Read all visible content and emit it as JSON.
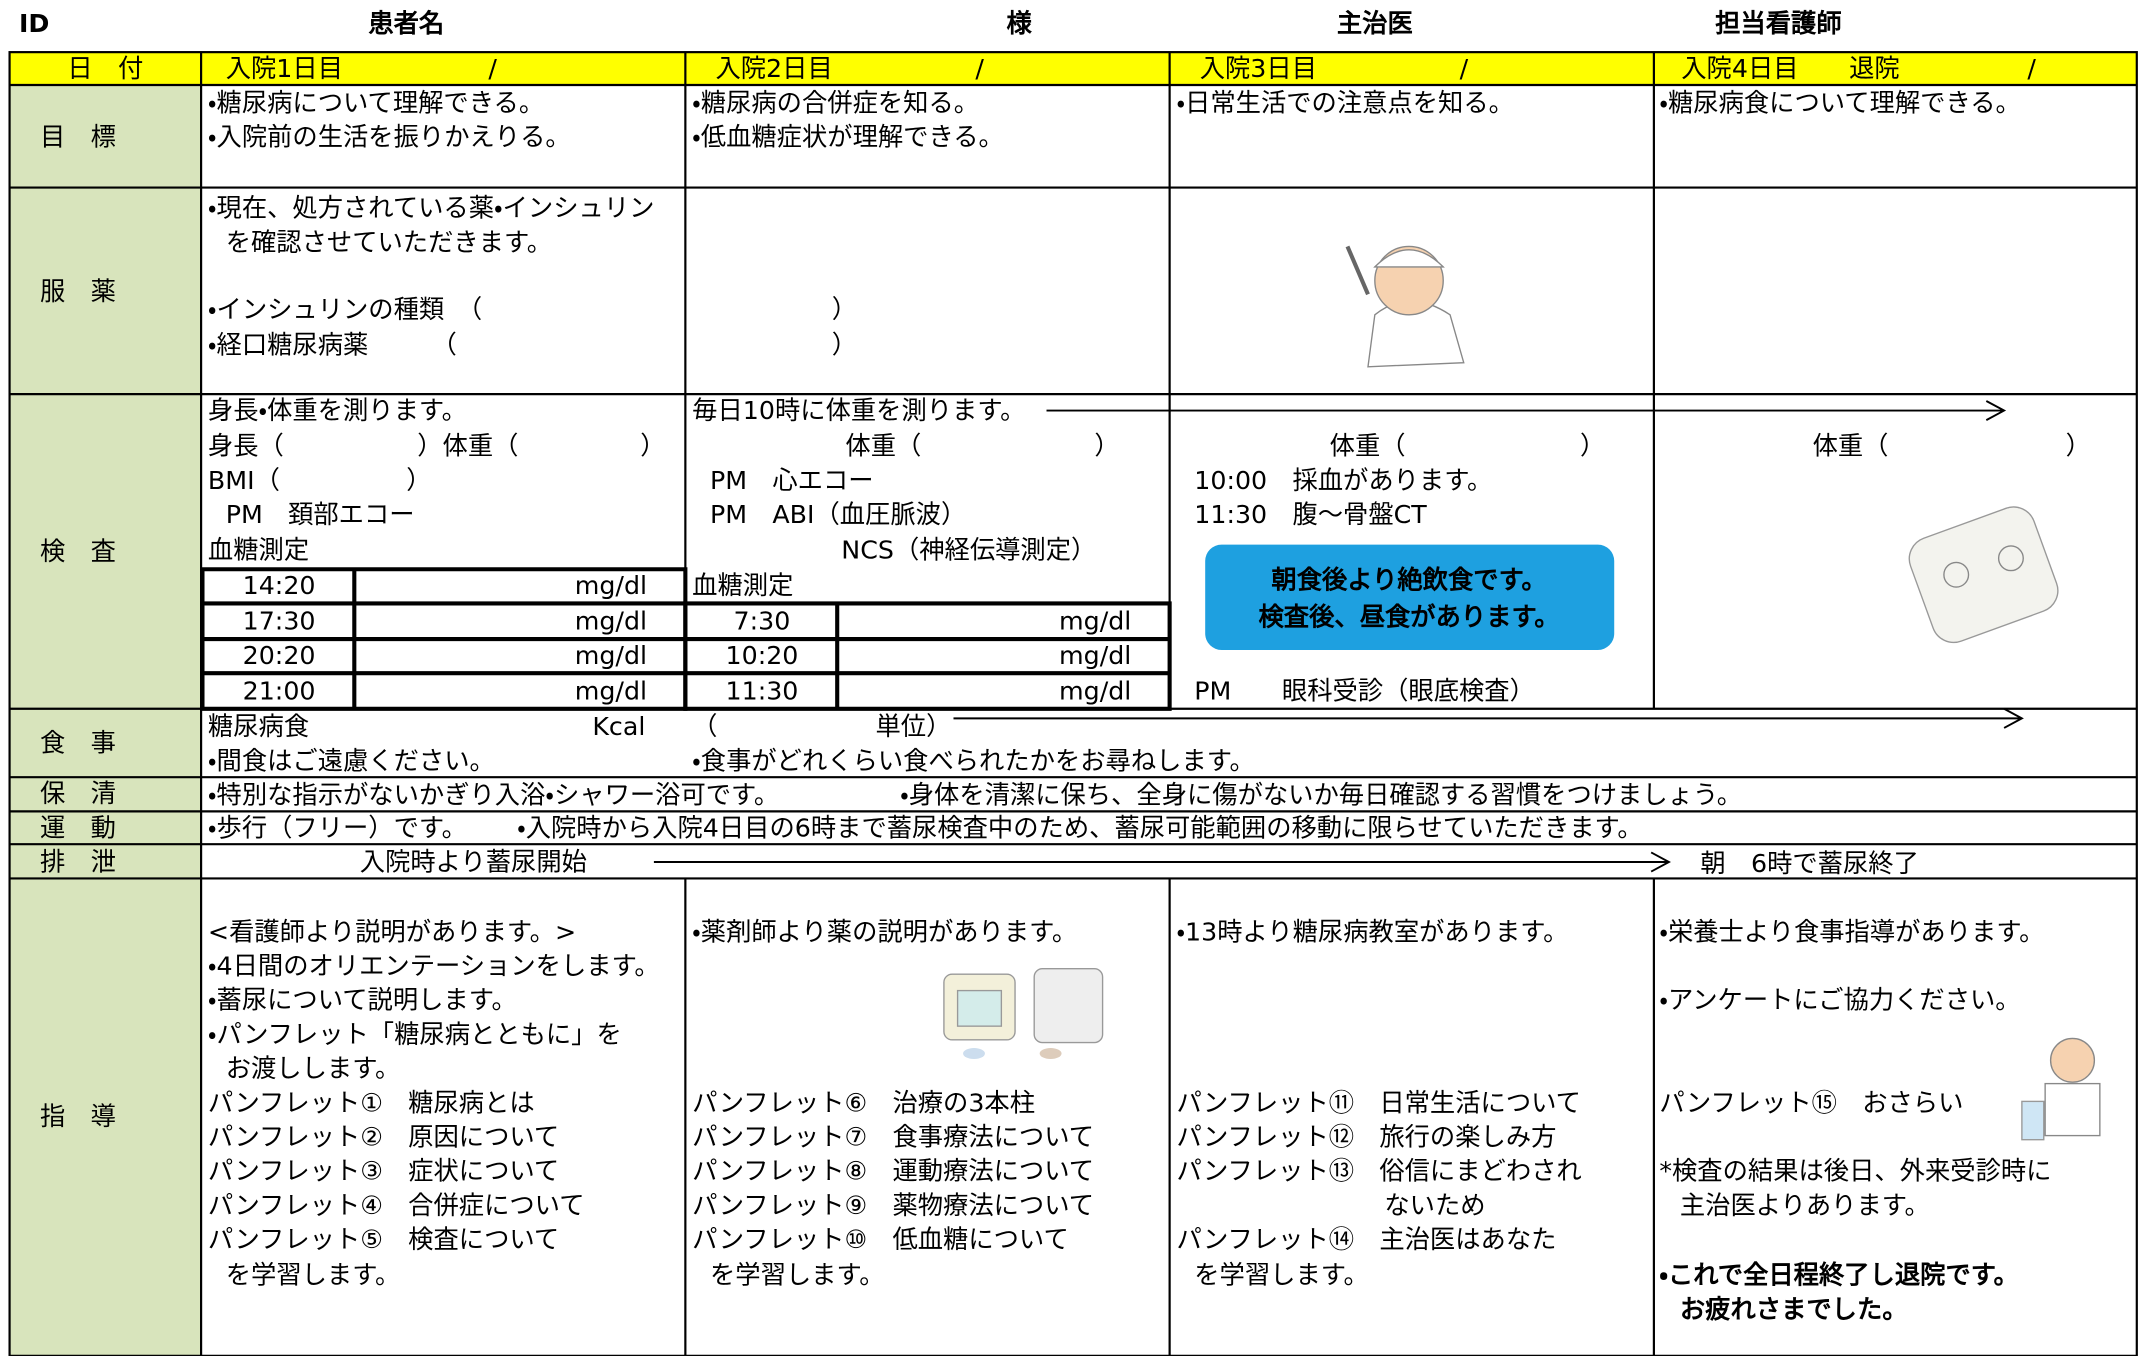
{
  "header": {
    "id": "ID",
    "patient": "患者名",
    "sama": "様",
    "doctor": "主治医",
    "nurse": "担当看護師"
  },
  "date_row": {
    "label": "日　付",
    "days": [
      "入院1日目",
      "入院2日目",
      "入院3日目",
      "入院4日目　　退院"
    ],
    "slashes": [
      "/",
      "/",
      "/",
      "/"
    ]
  },
  "goal": {
    "label": "目　標",
    "day1": [
      "・糖尿病について理解できる。",
      "・入院前の生活を振りかえりる。"
    ],
    "day2": [
      "・糖尿病の合併症を知る。",
      "・低血糖症状が理解できる。"
    ],
    "day3": [
      "・日常生活での注意点を知る。"
    ],
    "day4": [
      "・糖尿病食について理解できる。"
    ]
  },
  "medication": {
    "label": "服　薬",
    "day1": [
      "・現在、処方されている薬・インシュリン",
      "を確認させていただきます。",
      "・インシュリンの種類　（",
      "）",
      "・経口糖尿病薬　　　（",
      "）"
    ]
  },
  "exam": {
    "label": "検　査",
    "day1": [
      "身長・体重を測ります。",
      "身長（",
      "）体重（",
      "）",
      "BMI（",
      "）",
      "PM　頚部エコー",
      "血糖測定"
    ],
    "day1_glucose": [
      [
        "14:20",
        "mg/dl"
      ],
      [
        "17:30",
        "mg/dl"
      ],
      [
        "20:20",
        "mg/dl"
      ],
      [
        "21:00",
        "mg/dl"
      ]
    ],
    "day2": [
      "毎日10時に体重を測ります。",
      "体重（",
      "）",
      "PM　心エコー",
      "PM　ABI（血圧脈波）",
      "NCS（神経伝導測定）",
      "血糖測定"
    ],
    "day2_glucose": [
      [
        "7:30",
        "mg/dl"
      ],
      [
        "10:20",
        "mg/dl"
      ],
      [
        "11:30",
        "mg/dl"
      ]
    ],
    "day3": [
      "体重（",
      "）",
      "10:00　採血があります。",
      "11:30　腹～骨盤CT",
      "PM　　眼科受診（眼底検査）"
    ],
    "day3_notice": [
      "朝食後より絶飲食です。",
      "検査後、昼食があります。"
    ],
    "day4": [
      "体重（",
      "）"
    ]
  },
  "meal": {
    "label": "食　事",
    "lines": [
      "糖尿病食",
      "Kcal",
      "（",
      "単位）",
      "・間食はご遠慮ください。",
      "・食事がどれくらい食べられたかをお尋ねします。"
    ]
  },
  "hygiene": {
    "label": "保　清",
    "lines": [
      "・特別な指示がないかぎり入浴・シャワー浴可です。",
      "・身体を清潔に保ち、全身に傷がないか毎日確認する習慣をつけましょう。"
    ]
  },
  "exercise": {
    "label": "運　動",
    "lines": [
      "・歩行（フリー）です。",
      "・入院時から入院4日目の6時まで蓄尿検査中のため、蓄尿可能範囲の移動に限らせていただきます。"
    ]
  },
  "excretion": {
    "label": "排　泄",
    "lines": [
      "入院時より蓄尿開始",
      "朝　6時で蓄尿終了"
    ]
  },
  "guidance": {
    "label": "指　導",
    "day1": [
      "<看護師より説明があります。>",
      "・4日間のオリエンテーションをします。",
      "・蓄尿について説明します。",
      "・パンフレット「糖尿病とともに」を",
      "お渡しします。",
      "パンフレット①　糖尿病とは",
      "パンフレット②　原因について",
      "パンフレット③　症状について",
      "パンフレット④　合併症について",
      "パンフレット⑤　検査について",
      "を学習します。"
    ],
    "day2": [
      "・薬剤師より薬の説明があります。",
      "パンフレット⑥　治療の3本柱",
      "パンフレット⑦　食事療法について",
      "パンフレット⑧　運動療法について",
      "パンフレット⑨　薬物療法について",
      "パンフレット⑩　低血糖について",
      "を学習します。"
    ],
    "day3": [
      "・13時より糖尿病教室があります。",
      "パンフレット⑪　日常生活について",
      "パンフレット⑫　旅行の楽しみ方",
      "パンフレット⑬　俗信にまどわされ",
      "ないため",
      "パンフレット⑭　主治医はあなた",
      "を学習します。"
    ],
    "day4": [
      "・栄養士より食事指導があります。",
      "・アンケートにご協力ください。",
      "パンフレット⑮　おさらい",
      "*検査の結果は後日、外来受診時に",
      "主治医よりあります。",
      "・これで全日程終了し退院です。",
      "お疲れさまでした。"
    ]
  }
}
